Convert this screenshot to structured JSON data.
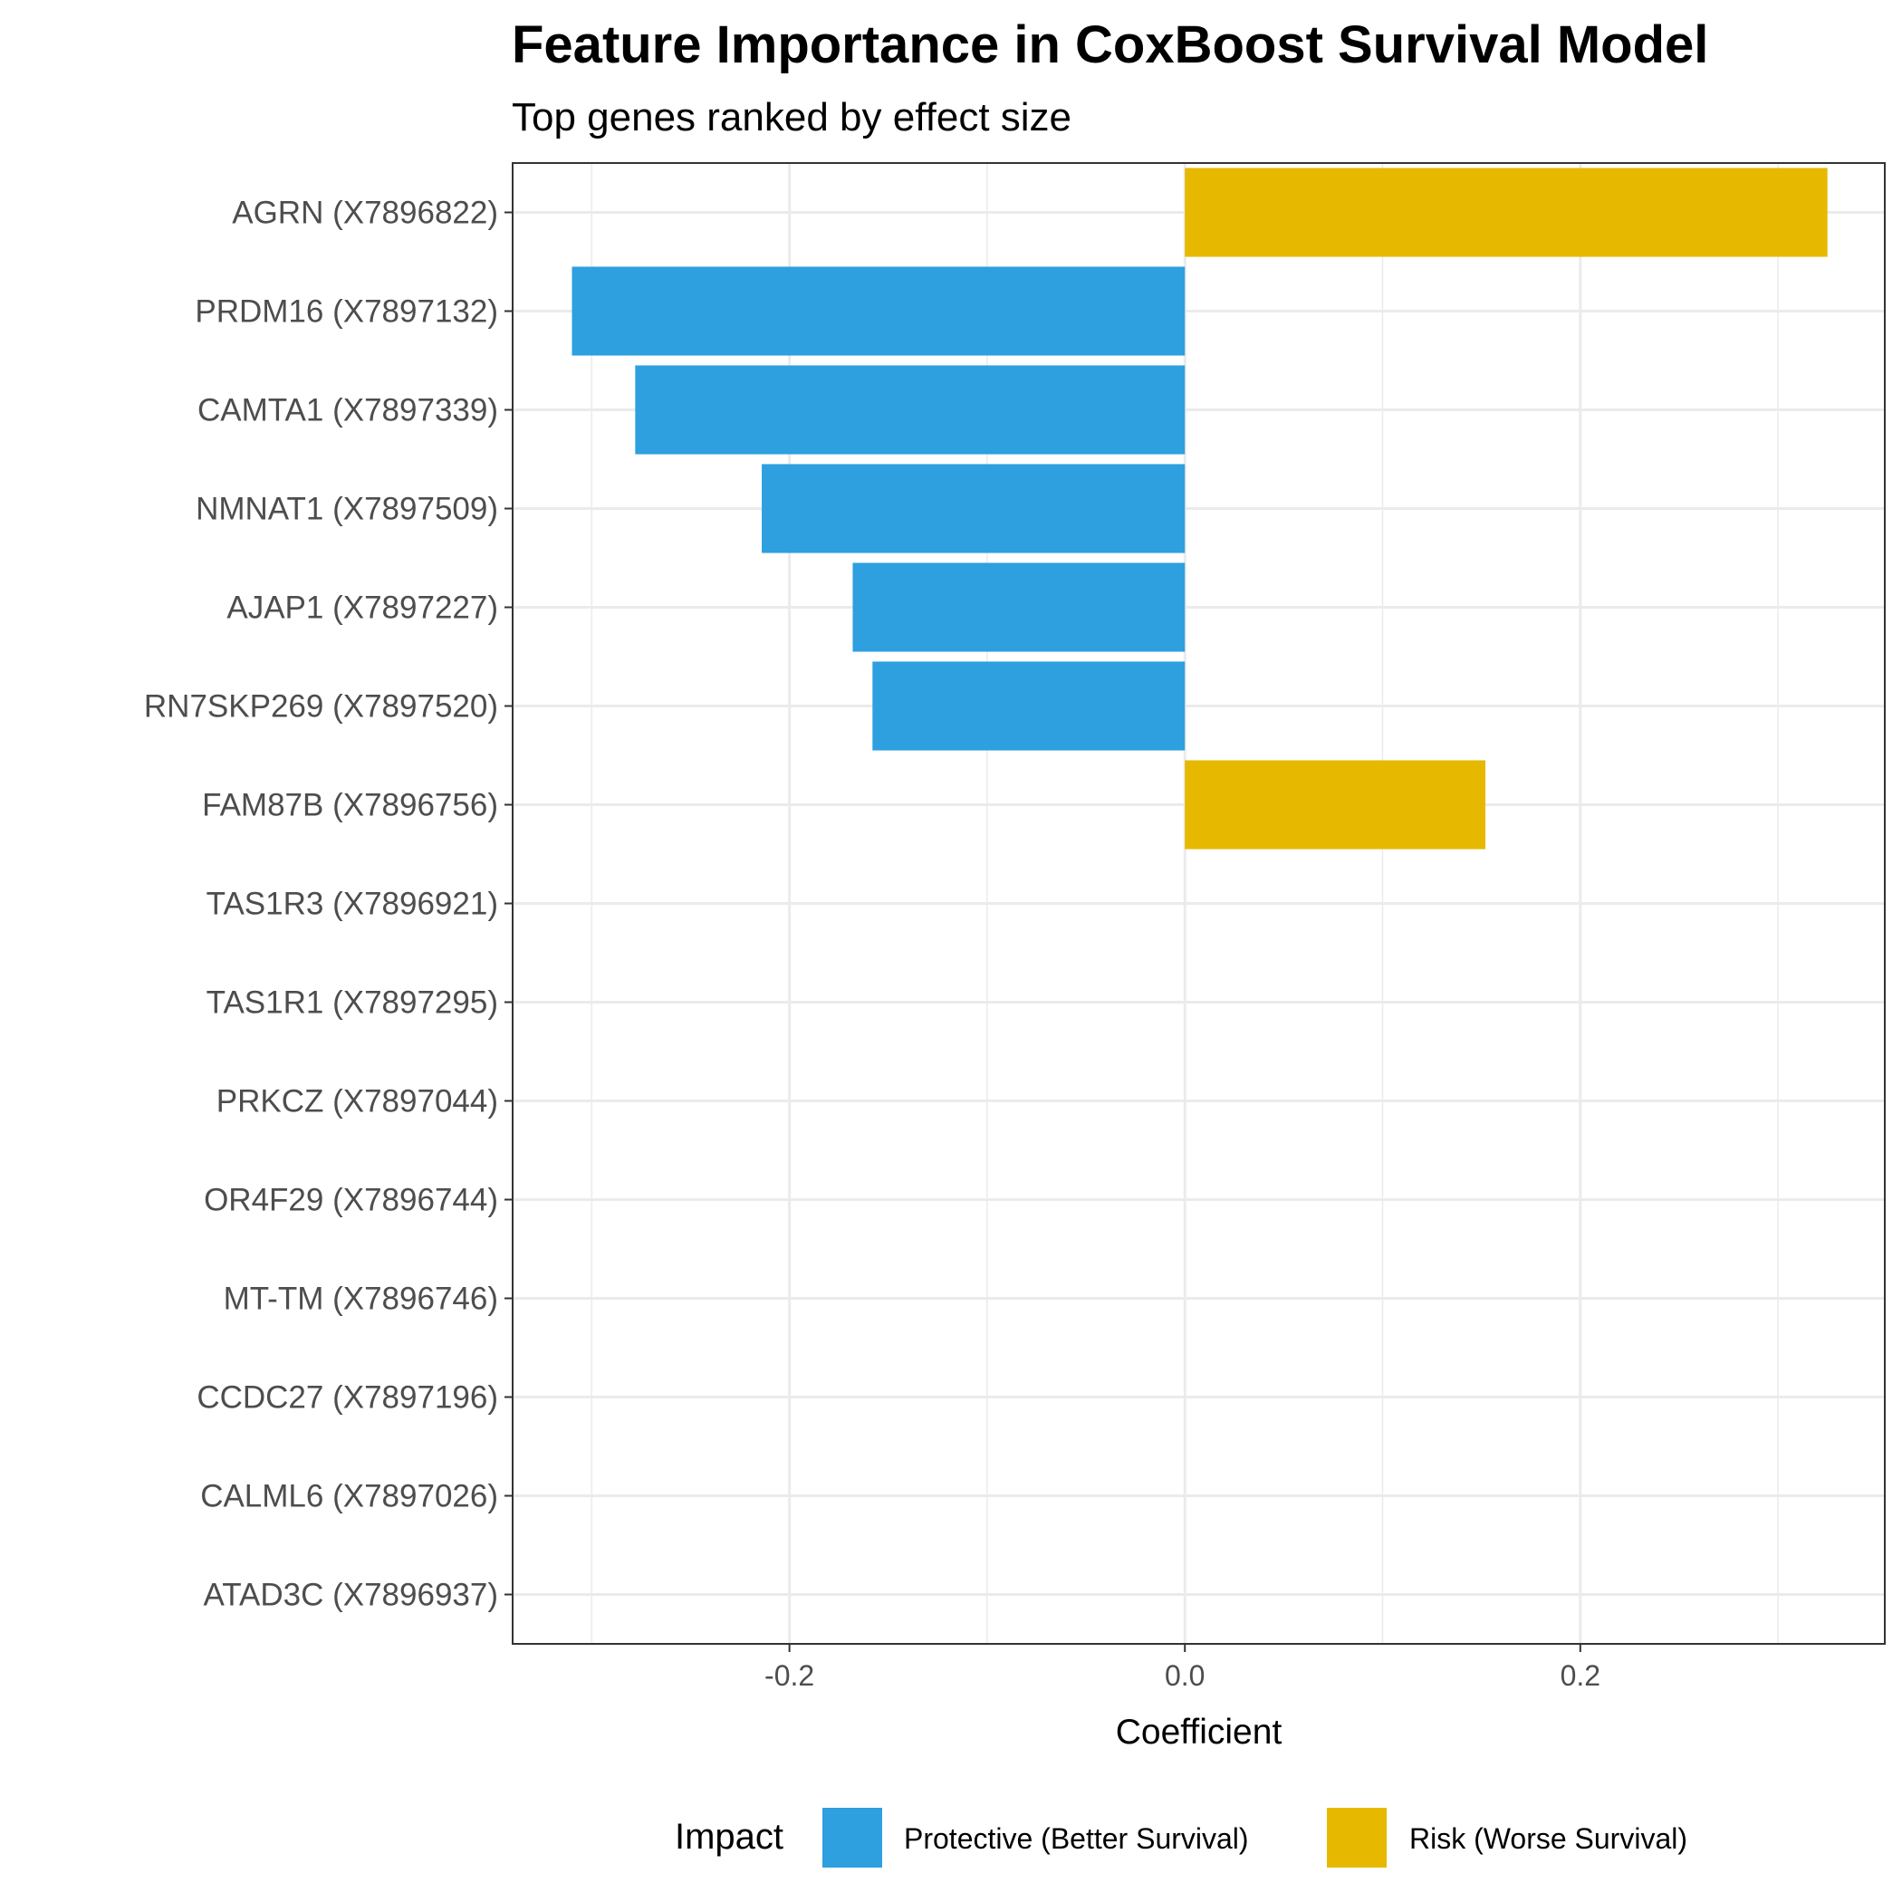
{
  "chart_data": {
    "type": "bar",
    "orientation": "horizontal",
    "title": "Feature Importance in CoxBoost Survival Model",
    "subtitle": "Top genes ranked by effect size",
    "xlabel": "Coefficient",
    "ylabel": "",
    "xlim": [
      -0.34,
      0.354
    ],
    "xticks": [
      -0.2,
      0.0,
      0.2
    ],
    "xtick_labels": [
      "-0.2",
      "0.0",
      "0.2"
    ],
    "grid": true,
    "categories": [
      "AGRN (X7896822)",
      "PRDM16 (X7897132)",
      "CAMTA1 (X7897339)",
      "NMNAT1 (X7897509)",
      "AJAP1 (X7897227)",
      "RN7SKP269 (X7897520)",
      "FAM87B (X7896756)",
      "TAS1R3 (X7896921)",
      "TAS1R1 (X7897295)",
      "PRKCZ (X7897044)",
      "OR4F29 (X7896744)",
      "MT-TM (X7896746)",
      "CCDC27 (X7897196)",
      "CALML6 (X7897026)",
      "ATAD3C (X7896937)"
    ],
    "values": [
      0.325,
      -0.31,
      -0.278,
      -0.214,
      -0.168,
      -0.158,
      0.152,
      0,
      0,
      0,
      0,
      0,
      0,
      0,
      0
    ],
    "legend": {
      "title": "Impact",
      "position": "bottom",
      "entries": [
        {
          "label": "Protective (Better Survival)",
          "color": "#2E9FDF"
        },
        {
          "label": "Risk (Worse Survival)",
          "color": "#E7B800"
        }
      ]
    }
  }
}
